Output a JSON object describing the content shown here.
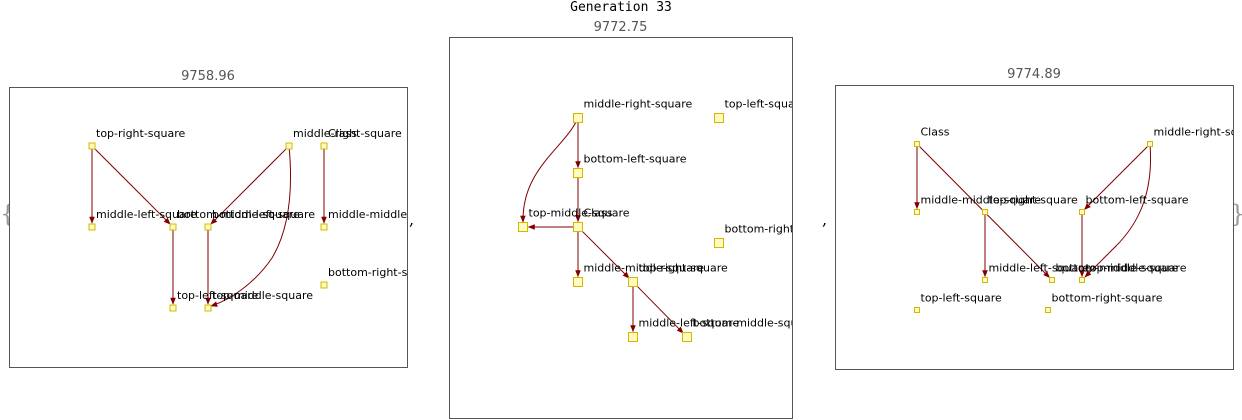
{
  "title": "Generation 33",
  "open_brace": "{",
  "close_brace": "}",
  "separator": ",",
  "colors": {
    "node_fill": "#fffac0",
    "node_stroke": "#d4b800",
    "edge": "#800000",
    "frame": "#555555"
  },
  "panels": [
    {
      "score": "9758.96",
      "nodes": [
        {
          "id": "trs",
          "label": "top-right-square"
        },
        {
          "id": "mrs",
          "label": "middle-right-square"
        },
        {
          "id": "cls",
          "label": "Class"
        },
        {
          "id": "mls",
          "label": "middle-left-square"
        },
        {
          "id": "bms",
          "label": "bottom-middle-square"
        },
        {
          "id": "bls",
          "label": "bottom-left-square"
        },
        {
          "id": "mms",
          "label": "middle-middle-square"
        },
        {
          "id": "brs",
          "label": "bottom-right-square"
        },
        {
          "id": "tls",
          "label": "top-left-square"
        },
        {
          "id": "tms",
          "label": "top-middle-square"
        }
      ],
      "edges": [
        [
          "trs",
          "mls"
        ],
        [
          "trs",
          "bms"
        ],
        [
          "mrs",
          "bls"
        ],
        [
          "mrs",
          "tms"
        ],
        [
          "cls",
          "mms"
        ],
        [
          "bms",
          "tls"
        ],
        [
          "bls",
          "tms"
        ]
      ]
    },
    {
      "score": "9772.75",
      "nodes": [
        {
          "id": "mrs",
          "label": "middle-right-square"
        },
        {
          "id": "tls",
          "label": "top-left-square"
        },
        {
          "id": "bls",
          "label": "bottom-left-square"
        },
        {
          "id": "tms",
          "label": "top-middle-square"
        },
        {
          "id": "cls",
          "label": "Class"
        },
        {
          "id": "brs",
          "label": "bottom-right-square"
        },
        {
          "id": "mms",
          "label": "middle-middle-square"
        },
        {
          "id": "trs",
          "label": "top-right-square"
        },
        {
          "id": "mls",
          "label": "middle-left-square"
        },
        {
          "id": "bms",
          "label": "bottom-middle-square"
        }
      ],
      "edges": [
        [
          "mrs",
          "bls"
        ],
        [
          "mrs",
          "tms"
        ],
        [
          "bls",
          "cls"
        ],
        [
          "cls",
          "tms"
        ],
        [
          "cls",
          "mms"
        ],
        [
          "cls",
          "trs"
        ],
        [
          "trs",
          "mls"
        ],
        [
          "trs",
          "bms"
        ]
      ]
    },
    {
      "score": "9774.89",
      "nodes": [
        {
          "id": "cls",
          "label": "Class"
        },
        {
          "id": "mrs",
          "label": "middle-right-square"
        },
        {
          "id": "mms",
          "label": "middle-middle-square"
        },
        {
          "id": "tps",
          "label": "top-right-square"
        },
        {
          "id": "bls",
          "label": "bottom-left-square"
        },
        {
          "id": "mls",
          "label": "middle-left-square"
        },
        {
          "id": "bts",
          "label": "bottom-middle-square"
        },
        {
          "id": "tms",
          "label": "top-middle-square"
        },
        {
          "id": "tls",
          "label": "top-left-square"
        },
        {
          "id": "brs",
          "label": "bottom-right-square"
        }
      ],
      "edges": [
        [
          "cls",
          "mms"
        ],
        [
          "cls",
          "bts"
        ],
        [
          "mrs",
          "bls"
        ],
        [
          "mrs",
          "tms"
        ],
        [
          "tps",
          "mls"
        ],
        [
          "bls",
          "tms"
        ]
      ]
    }
  ]
}
